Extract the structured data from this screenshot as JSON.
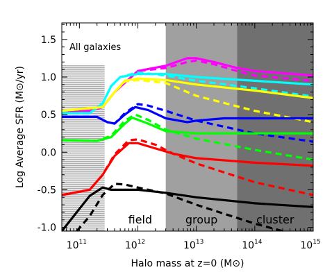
{
  "chart_data": {
    "type": "line",
    "panel_label": "All galaxies",
    "xlabel": "Halo mass at z=0 (M⊙)",
    "ylabel": "Log Average SFR (M⊙/yr)",
    "x_scale": "log",
    "xlim": [
      50000000000.0,
      1000000000000000.0
    ],
    "ylim": [
      -1.05,
      1.72
    ],
    "x_ticks": [
      {
        "value": 100000000000.0,
        "base": "10",
        "exp": "11"
      },
      {
        "value": 1000000000000.0,
        "base": "10",
        "exp": "12"
      },
      {
        "value": 10000000000000.0,
        "base": "10",
        "exp": "13"
      },
      {
        "value": 100000000000000.0,
        "base": "10",
        "exp": "14"
      },
      {
        "value": 1000000000000000.0,
        "base": "10",
        "exp": "15"
      }
    ],
    "y_ticks": [
      {
        "value": -1.0,
        "label": "-1.0"
      },
      {
        "value": -0.5,
        "label": "-0.5"
      },
      {
        "value": 0.0,
        "label": "0.0"
      },
      {
        "value": 0.5,
        "label": "0.5"
      },
      {
        "value": 1.0,
        "label": "1.0"
      },
      {
        "value": 1.5,
        "label": "1.5"
      }
    ],
    "regions": [
      {
        "label": "field",
        "x_range": [
          50000000000.0,
          3000000000000.0
        ],
        "color": "#ffffff"
      },
      {
        "label": "group",
        "x_range": [
          3000000000000.0,
          50000000000000.0
        ],
        "color": "#a0a0a0"
      },
      {
        "label": "cluster",
        "x_range": [
          50000000000000.0,
          1000000000000000.0
        ],
        "color": "#707070"
      }
    ],
    "hatch": {
      "x_range": [
        50000000000.0,
        270000000000.0
      ],
      "y_range": [
        -1.05,
        1.15
      ]
    },
    "series": [
      {
        "color": "#ff00ff",
        "style": "solid",
        "points": [
          [
            50000000000.0,
            0.55
          ],
          [
            150000000000.0,
            0.55
          ],
          [
            250000000000.0,
            0.6
          ],
          [
            400000000000.0,
            0.8
          ],
          [
            1000000000000.0,
            1.08
          ],
          [
            3000000000000.0,
            1.15
          ],
          [
            7000000000000.0,
            1.25
          ],
          [
            10000000000000.0,
            1.25
          ],
          [
            20000000000000.0,
            1.2
          ],
          [
            50000000000000.0,
            1.12
          ],
          [
            100000000000000.0,
            1.08
          ],
          [
            1000000000000000.0,
            1.02
          ]
        ]
      },
      {
        "color": "#ff00ff",
        "style": "dashed",
        "points": [
          [
            50000000000.0,
            0.55
          ],
          [
            150000000000.0,
            0.55
          ],
          [
            250000000000.0,
            0.6
          ],
          [
            400000000000.0,
            0.8
          ],
          [
            1000000000000.0,
            1.08
          ],
          [
            3000000000000.0,
            1.12
          ],
          [
            7000000000000.0,
            1.2
          ],
          [
            10000000000000.0,
            1.22
          ],
          [
            20000000000000.0,
            1.17
          ],
          [
            50000000000000.0,
            1.08
          ],
          [
            100000000000000.0,
            1.02
          ],
          [
            1000000000000000.0,
            0.95
          ]
        ]
      },
      {
        "color": "#00ffff",
        "style": "solid",
        "points": [
          [
            50000000000.0,
            0.52
          ],
          [
            150000000000.0,
            0.52
          ],
          [
            250000000000.0,
            0.65
          ],
          [
            350000000000.0,
            0.88
          ],
          [
            500000000000.0,
            1.0
          ],
          [
            1000000000000.0,
            1.04
          ],
          [
            3000000000000.0,
            1.04
          ],
          [
            10000000000000.0,
            1.0
          ],
          [
            100000000000000.0,
            0.95
          ],
          [
            1000000000000000.0,
            0.9
          ]
        ]
      },
      {
        "color": "#00ffff",
        "style": "dashed",
        "points": [
          [
            50000000000.0,
            0.52
          ],
          [
            150000000000.0,
            0.52
          ],
          [
            250000000000.0,
            0.65
          ],
          [
            350000000000.0,
            0.88
          ],
          [
            500000000000.0,
            1.0
          ],
          [
            1000000000000.0,
            1.06
          ],
          [
            3000000000000.0,
            1.02
          ],
          [
            10000000000000.0,
            0.95
          ],
          [
            100000000000000.0,
            0.85
          ],
          [
            1000000000000000.0,
            0.74
          ]
        ]
      },
      {
        "color": "#ffff00",
        "style": "solid",
        "points": [
          [
            50000000000.0,
            0.55
          ],
          [
            250000000000.0,
            0.6
          ],
          [
            400000000000.0,
            0.8
          ],
          [
            600000000000.0,
            0.95
          ],
          [
            1000000000000.0,
            0.98
          ],
          [
            3000000000000.0,
            0.96
          ],
          [
            10000000000000.0,
            0.9
          ],
          [
            100000000000000.0,
            0.82
          ],
          [
            1000000000000000.0,
            0.72
          ]
        ]
      },
      {
        "color": "#ffff00",
        "style": "dashed",
        "points": [
          [
            50000000000.0,
            0.55
          ],
          [
            250000000000.0,
            0.6
          ],
          [
            400000000000.0,
            0.8
          ],
          [
            600000000000.0,
            0.94
          ],
          [
            1000000000000.0,
            0.96
          ],
          [
            3000000000000.0,
            0.92
          ],
          [
            10000000000000.0,
            0.75
          ],
          [
            100000000000000.0,
            0.55
          ],
          [
            1000000000000000.0,
            0.4
          ]
        ]
      },
      {
        "color": "#0000ff",
        "style": "solid",
        "points": [
          [
            50000000000.0,
            0.47
          ],
          [
            200000000000.0,
            0.47
          ],
          [
            300000000000.0,
            0.4
          ],
          [
            400000000000.0,
            0.38
          ],
          [
            600000000000.0,
            0.5
          ],
          [
            900000000000.0,
            0.6
          ],
          [
            1500000000000.0,
            0.56
          ],
          [
            3000000000000.0,
            0.45
          ],
          [
            7000000000000.0,
            0.4
          ],
          [
            10000000000000.0,
            0.42
          ],
          [
            30000000000000.0,
            0.45
          ],
          [
            100000000000000.0,
            0.45
          ],
          [
            1000000000000000.0,
            0.45
          ]
        ]
      },
      {
        "color": "#0000ff",
        "style": "dashed",
        "points": [
          [
            50000000000.0,
            0.47
          ],
          [
            200000000000.0,
            0.47
          ],
          [
            300000000000.0,
            0.4
          ],
          [
            400000000000.0,
            0.38
          ],
          [
            600000000000.0,
            0.52
          ],
          [
            1000000000000.0,
            0.64
          ],
          [
            1500000000000.0,
            0.62
          ],
          [
            3000000000000.0,
            0.55
          ],
          [
            10000000000000.0,
            0.42
          ],
          [
            100000000000000.0,
            0.25
          ],
          [
            1000000000000000.0,
            0.14
          ]
        ]
      },
      {
        "color": "#00ff00",
        "style": "solid",
        "points": [
          [
            50000000000.0,
            0.16
          ],
          [
            200000000000.0,
            0.15
          ],
          [
            350000000000.0,
            0.2
          ],
          [
            600000000000.0,
            0.38
          ],
          [
            800000000000.0,
            0.46
          ],
          [
            1500000000000.0,
            0.38
          ],
          [
            3000000000000.0,
            0.28
          ],
          [
            10000000000000.0,
            0.25
          ],
          [
            100000000000000.0,
            0.25
          ],
          [
            1000000000000000.0,
            0.25
          ]
        ]
      },
      {
        "color": "#00ff00",
        "style": "dashed",
        "points": [
          [
            50000000000.0,
            0.16
          ],
          [
            200000000000.0,
            0.15
          ],
          [
            350000000000.0,
            0.22
          ],
          [
            600000000000.0,
            0.42
          ],
          [
            900000000000.0,
            0.5
          ],
          [
            1500000000000.0,
            0.43
          ],
          [
            3000000000000.0,
            0.3
          ],
          [
            10000000000000.0,
            0.18
          ],
          [
            100000000000000.0,
            0.03
          ],
          [
            1000000000000000.0,
            -0.1
          ]
        ]
      },
      {
        "color": "#ff0000",
        "style": "solid",
        "points": [
          [
            50000000000.0,
            -0.57
          ],
          [
            150000000000.0,
            -0.5
          ],
          [
            250000000000.0,
            -0.3
          ],
          [
            400000000000.0,
            -0.05
          ],
          [
            700000000000.0,
            0.12
          ],
          [
            1000000000000.0,
            0.12
          ],
          [
            2000000000000.0,
            0.05
          ],
          [
            4000000000000.0,
            -0.02
          ],
          [
            10000000000000.0,
            -0.08
          ],
          [
            100000000000000.0,
            -0.14
          ],
          [
            1000000000000000.0,
            -0.18
          ]
        ]
      },
      {
        "color": "#ff0000",
        "style": "dashed",
        "points": [
          [
            50000000000.0,
            -0.57
          ],
          [
            150000000000.0,
            -0.5
          ],
          [
            250000000000.0,
            -0.3
          ],
          [
            400000000000.0,
            -0.03
          ],
          [
            700000000000.0,
            0.16
          ],
          [
            1000000000000.0,
            0.17
          ],
          [
            2000000000000.0,
            0.1
          ],
          [
            4000000000000.0,
            -0.02
          ],
          [
            10000000000000.0,
            -0.15
          ],
          [
            100000000000000.0,
            -0.4
          ],
          [
            1000000000000000.0,
            -0.57
          ]
        ]
      },
      {
        "color": "#000000",
        "style": "solid",
        "points": [
          [
            50000000000.0,
            -1.05
          ],
          [
            80000000000.0,
            -0.85
          ],
          [
            150000000000.0,
            -0.58
          ],
          [
            250000000000.0,
            -0.47
          ],
          [
            350000000000.0,
            -0.5
          ],
          [
            500000000000.0,
            -0.5
          ],
          [
            1000000000000.0,
            -0.5
          ],
          [
            3000000000000.0,
            -0.54
          ],
          [
            10000000000000.0,
            -0.6
          ],
          [
            100000000000000.0,
            -0.68
          ],
          [
            1000000000000000.0,
            -0.73
          ]
        ]
      },
      {
        "color": "#000000",
        "style": "dashed",
        "points": [
          [
            90000000000.0,
            -1.05
          ],
          [
            150000000000.0,
            -0.85
          ],
          [
            250000000000.0,
            -0.57
          ],
          [
            400000000000.0,
            -0.42
          ],
          [
            600000000000.0,
            -0.43
          ],
          [
            1000000000000.0,
            -0.47
          ],
          [
            3000000000000.0,
            -0.55
          ],
          [
            10000000000000.0,
            -0.7
          ],
          [
            100000000000000.0,
            -0.95
          ],
          [
            300000000000000.0,
            -1.05
          ]
        ]
      }
    ]
  }
}
